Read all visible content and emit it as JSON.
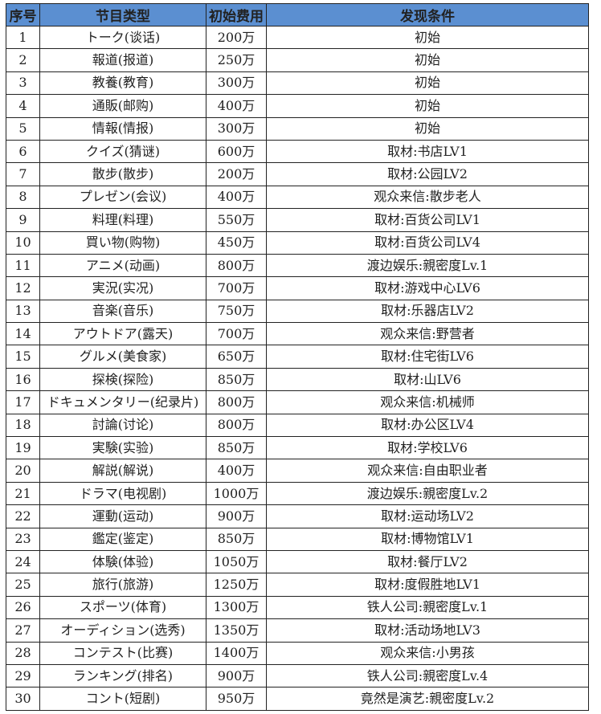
{
  "table": {
    "headers": [
      "序号",
      "节目类型",
      "初始费用",
      "发现条件"
    ],
    "header_color": "#5b8fd1",
    "rows": [
      [
        "1",
        "トーク(谈话)",
        "200万",
        "初始"
      ],
      [
        "2",
        "報道(报道)",
        "250万",
        "初始"
      ],
      [
        "3",
        "教養(教育)",
        "300万",
        "初始"
      ],
      [
        "4",
        "通販(邮购)",
        "400万",
        "初始"
      ],
      [
        "5",
        "情報(情报)",
        "300万",
        "初始"
      ],
      [
        "6",
        "クイズ(猜谜)",
        "600万",
        "取材:书店LV1"
      ],
      [
        "7",
        "散步(散步)",
        "200万",
        "取材:公园LV2"
      ],
      [
        "8",
        "プレゼン(会议)",
        "400万",
        "观众来信:散步老人"
      ],
      [
        "9",
        "料理(料理)",
        "550万",
        "取材:百货公司LV1"
      ],
      [
        "10",
        "買い物(购物)",
        "450万",
        "取材:百货公司LV4"
      ],
      [
        "11",
        "アニメ(动画)",
        "800万",
        "渡边娱乐:親密度Lv.1"
      ],
      [
        "12",
        "実況(实况)",
        "700万",
        "取材:游戏中心LV6"
      ],
      [
        "13",
        "音楽(音乐)",
        "750万",
        "取材:乐器店LV2"
      ],
      [
        "14",
        "アウトドア(露天)",
        "700万",
        "观众来信:野营者"
      ],
      [
        "15",
        "グルメ(美食家)",
        "650万",
        "取材:住宅街LV6"
      ],
      [
        "16",
        "探検(探险)",
        "850万",
        "取材:山LV6"
      ],
      [
        "17",
        "ドキュメンタリー(纪录片)",
        "800万",
        "观众来信:机械师"
      ],
      [
        "18",
        "討論(讨论)",
        "800万",
        "取材:办公区LV4"
      ],
      [
        "19",
        "実験(实验)",
        "850万",
        "取材:学校LV6"
      ],
      [
        "20",
        "解説(解说)",
        "400万",
        "观众来信:自由职业者"
      ],
      [
        "21",
        "ドラマ(电视剧)",
        "1000万",
        "渡边娱乐:親密度Lv.2"
      ],
      [
        "22",
        "運動(运动)",
        "900万",
        "取材:运动场LV2"
      ],
      [
        "23",
        "鑑定(鉴定)",
        "850万",
        "取材:博物馆LV1"
      ],
      [
        "24",
        "体験(体验)",
        "1050万",
        "取材:餐厅LV2"
      ],
      [
        "25",
        "旅行(旅游)",
        "1250万",
        "取材:度假胜地LV1"
      ],
      [
        "26",
        "スポーツ(体育)",
        "1300万",
        "铁人公司:親密度Lv.1"
      ],
      [
        "27",
        "オーディション(选秀)",
        "1350万",
        "取材:活动场地LV3"
      ],
      [
        "28",
        "コンテスト(比赛)",
        "1400万",
        "观众来信:小男孩"
      ],
      [
        "29",
        "ランキング(排名)",
        "900万",
        "铁人公司:親密度Lv.4"
      ],
      [
        "30",
        "コント(短剧)",
        "950万",
        "竟然是演艺:親密度Lv.2"
      ]
    ]
  }
}
